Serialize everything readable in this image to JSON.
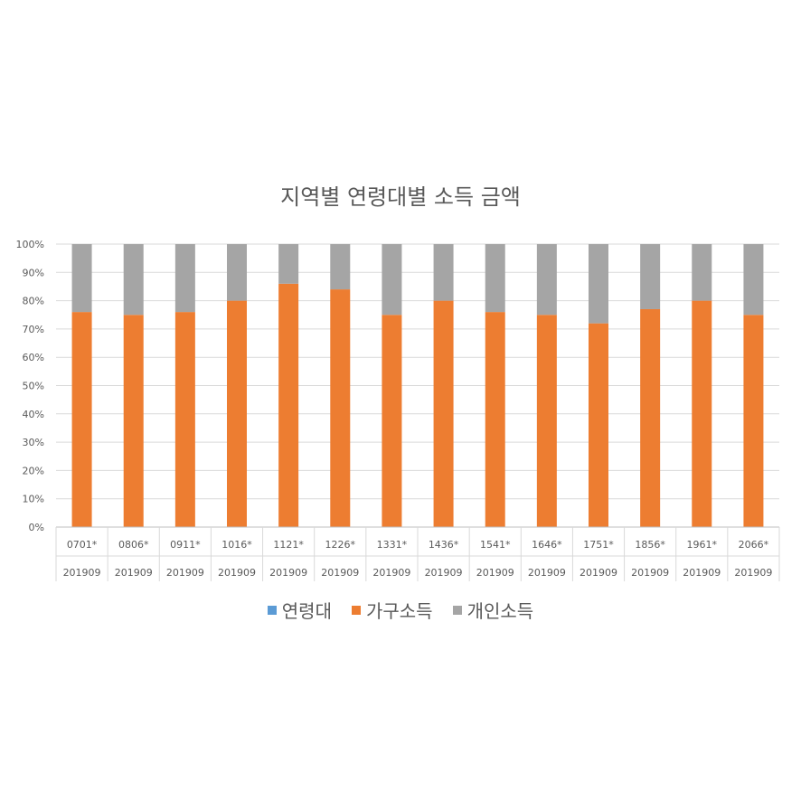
{
  "chart_data": {
    "type": "bar",
    "stacked": "percent",
    "title": "지역별 연령대별 소득 금액",
    "xlabel": "",
    "ylabel": "",
    "ylim": [
      0,
      100
    ],
    "yticks": [
      "0%",
      "10%",
      "20%",
      "30%",
      "40%",
      "50%",
      "60%",
      "70%",
      "80%",
      "90%",
      "100%"
    ],
    "categories": [
      "0701*",
      "0806*",
      "0911*",
      "1016*",
      "1121*",
      "1226*",
      "1331*",
      "1436*",
      "1541*",
      "1646*",
      "1751*",
      "1856*",
      "1961*",
      "2066*"
    ],
    "categories_level2": [
      "201909",
      "201909",
      "201909",
      "201909",
      "201909",
      "201909",
      "201909",
      "201909",
      "201909",
      "201909",
      "201909",
      "201909",
      "201909",
      "201909"
    ],
    "grid": true,
    "legend_position": "bottom",
    "series": [
      {
        "name": "연령대",
        "color": "#5B9BD5",
        "values": [
          0,
          0,
          0,
          0,
          0,
          0,
          0,
          0,
          0,
          0,
          0,
          0,
          0,
          0
        ]
      },
      {
        "name": "가구소득",
        "color": "#ED7D31",
        "values": [
          76,
          75,
          76,
          80,
          86,
          84,
          75,
          80,
          76,
          75,
          72,
          77,
          80,
          75
        ]
      },
      {
        "name": "개인소득",
        "color": "#A5A5A5",
        "values": [
          24,
          25,
          24,
          20,
          14,
          16,
          25,
          20,
          24,
          25,
          28,
          23,
          20,
          25
        ]
      }
    ]
  }
}
